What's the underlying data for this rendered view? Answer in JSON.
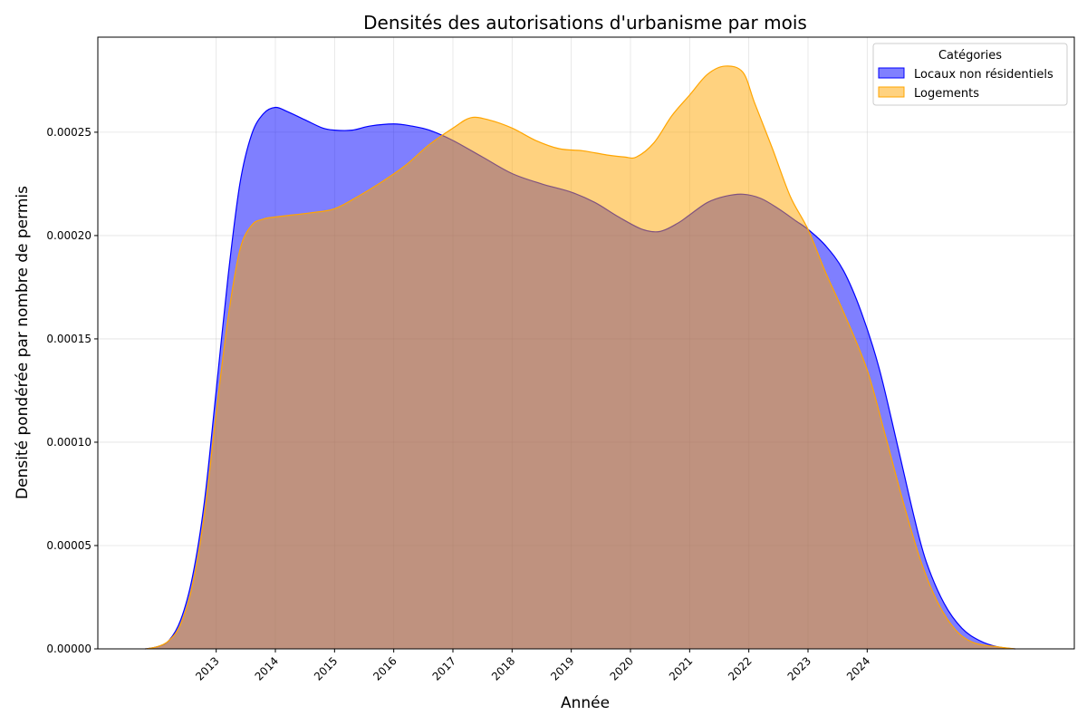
{
  "chart_data": {
    "type": "area",
    "title": "Densités des autorisations d'urbanisme par mois",
    "xlabel": "Année",
    "ylabel": "Densité pondérée par nombre de permis",
    "x_ticks": [
      "2013",
      "2014",
      "2015",
      "2016",
      "2017",
      "2018",
      "2019",
      "2020",
      "2021",
      "2022",
      "2023",
      "2024"
    ],
    "y_ticks": [
      "0.00000",
      "0.00005",
      "0.00010",
      "0.00015",
      "0.00020",
      "0.00025"
    ],
    "xlim": [
      2011.0,
      2027.5
    ],
    "ylim": [
      0,
      0.000296
    ],
    "grid": true,
    "legend": {
      "title": "Catégories",
      "placement": "top-right"
    },
    "series": [
      {
        "name": "Locaux non résidentiels",
        "color": "#0000ff",
        "fill_color": "#8080ff",
        "points": [
          [
            2011.8,
            0.0
          ],
          [
            2012.0,
            1e-06
          ],
          [
            2012.2,
            4e-06
          ],
          [
            2012.4,
            1.4e-05
          ],
          [
            2012.6,
            3.5e-05
          ],
          [
            2012.8,
            7.1e-05
          ],
          [
            2013.0,
            0.000125
          ],
          [
            2013.2,
            0.00018
          ],
          [
            2013.4,
            0.000225
          ],
          [
            2013.6,
            0.000249
          ],
          [
            2013.8,
            0.000259
          ],
          [
            2014.0,
            0.000262
          ],
          [
            2014.2,
            0.00026
          ],
          [
            2014.5,
            0.000256
          ],
          [
            2014.8,
            0.000252
          ],
          [
            2015.0,
            0.000251
          ],
          [
            2015.3,
            0.000251
          ],
          [
            2015.6,
            0.000253
          ],
          [
            2016.0,
            0.000254
          ],
          [
            2016.3,
            0.000253
          ],
          [
            2016.6,
            0.000251
          ],
          [
            2017.0,
            0.000246
          ],
          [
            2017.5,
            0.000238
          ],
          [
            2018.0,
            0.00023
          ],
          [
            2018.5,
            0.000225
          ],
          [
            2019.0,
            0.000221
          ],
          [
            2019.4,
            0.000216
          ],
          [
            2019.8,
            0.000209
          ],
          [
            2020.2,
            0.000203
          ],
          [
            2020.5,
            0.000202
          ],
          [
            2020.8,
            0.000206
          ],
          [
            2021.0,
            0.00021
          ],
          [
            2021.3,
            0.000216
          ],
          [
            2021.6,
            0.000219
          ],
          [
            2021.9,
            0.00022
          ],
          [
            2022.2,
            0.000218
          ],
          [
            2022.5,
            0.000213
          ],
          [
            2022.8,
            0.000207
          ],
          [
            2023.0,
            0.000203
          ],
          [
            2023.3,
            0.000195
          ],
          [
            2023.6,
            0.000183
          ],
          [
            2023.9,
            0.000163
          ],
          [
            2024.2,
            0.000136
          ],
          [
            2024.5,
            0.0001
          ],
          [
            2024.8,
            6.3e-05
          ],
          [
            2025.0,
            4.2e-05
          ],
          [
            2025.3,
            2.2e-05
          ],
          [
            2025.6,
            1e-05
          ],
          [
            2025.9,
            4e-06
          ],
          [
            2026.2,
            1e-06
          ],
          [
            2026.5,
            0.0
          ]
        ]
      },
      {
        "name": "Logements",
        "color": "#ffa500",
        "fill_color": "#ffd280",
        "points": [
          [
            2011.8,
            0.0
          ],
          [
            2012.0,
            1e-06
          ],
          [
            2012.2,
            4e-06
          ],
          [
            2012.4,
            1.2e-05
          ],
          [
            2012.6,
            3.1e-05
          ],
          [
            2012.8,
            6.5e-05
          ],
          [
            2013.0,
            0.000114
          ],
          [
            2013.2,
            0.00016
          ],
          [
            2013.4,
            0.000193
          ],
          [
            2013.6,
            0.000205
          ],
          [
            2013.8,
            0.000208
          ],
          [
            2014.0,
            0.000209
          ],
          [
            2014.3,
            0.00021
          ],
          [
            2014.6,
            0.000211
          ],
          [
            2015.0,
            0.000213
          ],
          [
            2015.4,
            0.000219
          ],
          [
            2015.8,
            0.000226
          ],
          [
            2016.2,
            0.000234
          ],
          [
            2016.6,
            0.000244
          ],
          [
            2017.0,
            0.000252
          ],
          [
            2017.3,
            0.000257
          ],
          [
            2017.6,
            0.000256
          ],
          [
            2018.0,
            0.000252
          ],
          [
            2018.4,
            0.000246
          ],
          [
            2018.8,
            0.000242
          ],
          [
            2019.2,
            0.000241
          ],
          [
            2019.6,
            0.000239
          ],
          [
            2019.9,
            0.000238
          ],
          [
            2020.1,
            0.000238
          ],
          [
            2020.4,
            0.000245
          ],
          [
            2020.7,
            0.000258
          ],
          [
            2021.0,
            0.000268
          ],
          [
            2021.3,
            0.000278
          ],
          [
            2021.6,
            0.000282
          ],
          [
            2021.9,
            0.000279
          ],
          [
            2022.1,
            0.000264
          ],
          [
            2022.4,
            0.000242
          ],
          [
            2022.7,
            0.000219
          ],
          [
            2023.0,
            0.000203
          ],
          [
            2023.3,
            0.000182
          ],
          [
            2023.6,
            0.000163
          ],
          [
            2024.0,
            0.000135
          ],
          [
            2024.3,
            0.000104
          ],
          [
            2024.6,
            7.2e-05
          ],
          [
            2024.9,
            4.3e-05
          ],
          [
            2025.2,
            2.2e-05
          ],
          [
            2025.5,
            9e-06
          ],
          [
            2025.8,
            3e-06
          ],
          [
            2026.2,
            1e-06
          ],
          [
            2026.5,
            0.0
          ]
        ]
      }
    ]
  }
}
